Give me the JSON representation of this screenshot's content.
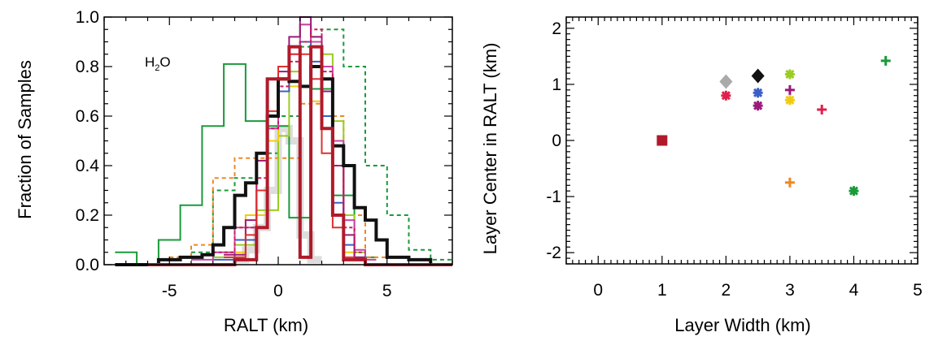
{
  "chart_data": [
    {
      "type": "line",
      "subtype": "histogram",
      "xlabel": "RALT (km)",
      "ylabel": "Fraction of Samples",
      "xlim": [
        -8,
        8
      ],
      "ylim": [
        0,
        1
      ],
      "xticks": [
        -5,
        0,
        5
      ],
      "yticks": [
        0.0,
        0.2,
        0.4,
        0.6,
        0.8,
        1.0
      ],
      "ytick_labels": [
        "0.0",
        "0.2",
        "0.4",
        "0.6",
        "0.8",
        "1.0"
      ],
      "annotation": {
        "main": "H",
        "sub": "2",
        "tail": "O"
      },
      "grid": false,
      "series": [
        {
          "color": "#dddddd",
          "width": 9,
          "dash": "",
          "x": [
            -2.0,
            -1.5,
            -1.0,
            -0.5,
            0.0,
            0.5,
            1.0,
            1.5
          ],
          "y": [
            0.02,
            0.06,
            0.15,
            0.3,
            0.55,
            0.5,
            0.12,
            0.02
          ]
        },
        {
          "color": "#1a9a3a",
          "width": 2,
          "dash": "",
          "x": [
            -7.5,
            -6.5,
            -5.5,
            -4.5,
            -3.5,
            -2.5,
            -1.5,
            -0.5,
            0.5,
            1.5,
            2.5,
            3.5
          ],
          "y": [
            0.05,
            0.0,
            0.1,
            0.24,
            0.56,
            0.81,
            0.58,
            0.56,
            0.19,
            0.71,
            0.28,
            0.03
          ]
        },
        {
          "color": "#1a9a3a",
          "width": 2,
          "dash": "5,4",
          "x": [
            -4.0,
            -3.0,
            -2.0,
            -1.0,
            0.0,
            1.0,
            2.0,
            3.0,
            4.0,
            5.0,
            6.0,
            7.0
          ],
          "y": [
            0.05,
            0.3,
            0.35,
            0.45,
            0.6,
            0.88,
            0.95,
            0.8,
            0.4,
            0.2,
            0.06,
            0.02
          ]
        },
        {
          "color": "#ee8822",
          "width": 2,
          "dash": "5,4",
          "x": [
            -5.0,
            -4.0,
            -3.0,
            -2.0,
            -1.0,
            0.0,
            1.0,
            2.0,
            3.0,
            4.0
          ],
          "y": [
            0.03,
            0.08,
            0.35,
            0.43,
            0.43,
            0.43,
            0.65,
            0.6,
            0.2,
            0.03
          ]
        },
        {
          "color": "#9acc22",
          "width": 2,
          "dash": "",
          "x": [
            -3.0,
            -2.0,
            -1.0,
            0.0,
            0.5,
            1.0,
            1.5,
            2.0,
            2.5,
            3.0,
            3.5,
            4.0
          ],
          "y": [
            0.03,
            0.08,
            0.22,
            0.52,
            0.78,
            0.97,
            0.92,
            0.85,
            0.58,
            0.2,
            0.05,
            0.02
          ]
        },
        {
          "color": "#f0cc10",
          "width": 2,
          "dash": "",
          "x": [
            -2.5,
            -1.5,
            -0.5,
            0.0,
            0.5,
            1.0,
            1.5,
            2.0,
            2.5,
            3.0
          ],
          "y": [
            0.05,
            0.2,
            0.5,
            0.7,
            0.72,
            0.72,
            0.66,
            0.7,
            0.4,
            0.05
          ]
        },
        {
          "color": "#3a5fc8",
          "width": 2,
          "dash": "",
          "x": [
            -3.0,
            -2.0,
            -1.0,
            -0.5,
            0.0,
            0.5,
            1.0,
            1.5,
            2.0,
            2.5,
            3.0,
            3.5
          ],
          "y": [
            0.02,
            0.1,
            0.3,
            0.6,
            0.7,
            0.88,
            0.9,
            0.82,
            0.6,
            0.25,
            0.08,
            0.02
          ]
        },
        {
          "color": "#cc44aa",
          "width": 2,
          "dash": "",
          "x": [
            -4.0,
            -3.0,
            -2.0,
            -1.0,
            -0.5,
            0.0,
            0.5,
            1.0,
            1.5,
            2.0,
            2.5,
            3.0,
            3.5,
            4.0
          ],
          "y": [
            0.02,
            0.05,
            0.15,
            0.3,
            0.55,
            0.75,
            0.85,
            0.97,
            0.9,
            0.8,
            0.5,
            0.18,
            0.06,
            0.02
          ]
        },
        {
          "color": "#9a1a7a",
          "width": 2,
          "dash": "",
          "x": [
            -2.5,
            -1.5,
            -1.0,
            -0.5,
            0.0,
            0.5,
            1.0,
            1.5,
            2.0,
            2.5,
            3.0,
            3.5
          ],
          "y": [
            0.04,
            0.18,
            0.42,
            0.6,
            0.78,
            0.92,
            1.0,
            0.92,
            0.7,
            0.4,
            0.12,
            0.03
          ]
        },
        {
          "color": "#cc1a5a",
          "width": 2,
          "dash": "4,3",
          "x": [
            -3.0,
            -2.0,
            -1.0,
            -0.5,
            0.0,
            0.5,
            1.0,
            1.5,
            2.0,
            2.5,
            3.0,
            3.5
          ],
          "y": [
            0.05,
            0.15,
            0.35,
            0.55,
            0.72,
            0.82,
            0.9,
            0.95,
            0.78,
            0.4,
            0.15,
            0.05
          ]
        },
        {
          "color": "#e03030",
          "width": 2,
          "dash": "",
          "x": [
            -2.5,
            -1.5,
            -1.0,
            -0.5,
            0.0,
            0.5,
            1.0,
            1.5,
            2.0,
            2.5,
            3.0
          ],
          "y": [
            0.03,
            0.12,
            0.3,
            0.62,
            0.8,
            0.85,
            0.85,
            0.75,
            0.45,
            0.15,
            0.03
          ]
        },
        {
          "color": "#111111",
          "width": 4,
          "dash": "",
          "x": [
            -7.5,
            -6.5,
            -5.5,
            -4.5,
            -3.5,
            -3.0,
            -2.5,
            -2.0,
            -1.5,
            -1.0,
            -0.5,
            0.0,
            0.5,
            1.0,
            1.5,
            2.0,
            2.5,
            3.0,
            3.5,
            4.0,
            4.5,
            5.0,
            6.0,
            7.0
          ],
          "y": [
            0.0,
            0.0,
            0.02,
            0.03,
            0.04,
            0.08,
            0.15,
            0.28,
            0.33,
            0.45,
            0.6,
            0.75,
            0.74,
            0.72,
            0.8,
            0.75,
            0.48,
            0.4,
            0.23,
            0.18,
            0.1,
            0.03,
            0.02,
            0.0
          ]
        },
        {
          "color": "#b01a2a",
          "width": 4,
          "dash": "",
          "x": [
            -6.0,
            -4.0,
            -2.0,
            -1.0,
            -0.5,
            0.0,
            0.5,
            1.0,
            1.5,
            2.0,
            2.5,
            3.0,
            4.0,
            6.0
          ],
          "y": [
            0.0,
            0.0,
            0.02,
            0.15,
            0.75,
            0.75,
            0.88,
            0.03,
            0.88,
            0.55,
            0.2,
            0.02,
            0.0,
            0.0
          ]
        }
      ]
    },
    {
      "type": "scatter",
      "xlabel": "Layer Width (km)",
      "ylabel": "Layer Center in RALT (km)",
      "xlim": [
        -0.5,
        5
      ],
      "ylim": [
        -2.2,
        2.2
      ],
      "xticks": [
        0,
        1,
        2,
        3,
        4,
        5
      ],
      "yticks": [
        -2,
        -1,
        0,
        1,
        2
      ],
      "grid": false,
      "points": [
        {
          "x": 1.0,
          "y": 0.0,
          "color": "#b01a2a",
          "marker": "square"
        },
        {
          "x": 2.0,
          "y": 1.05,
          "color": "#aaaaaa",
          "marker": "diamond"
        },
        {
          "x": 2.0,
          "y": 0.8,
          "color": "#e0204a",
          "marker": "asterisk"
        },
        {
          "x": 2.5,
          "y": 1.15,
          "color": "#111111",
          "marker": "diamond"
        },
        {
          "x": 2.5,
          "y": 0.85,
          "color": "#3a5fc8",
          "marker": "asterisk"
        },
        {
          "x": 2.5,
          "y": 0.62,
          "color": "#9a1a7a",
          "marker": "asterisk"
        },
        {
          "x": 3.0,
          "y": 1.18,
          "color": "#9acc22",
          "marker": "asterisk"
        },
        {
          "x": 3.0,
          "y": 0.9,
          "color": "#9a1a7a",
          "marker": "plus"
        },
        {
          "x": 3.0,
          "y": 0.72,
          "color": "#f0cc10",
          "marker": "asterisk"
        },
        {
          "x": 3.0,
          "y": -0.75,
          "color": "#ee8822",
          "marker": "plus"
        },
        {
          "x": 3.5,
          "y": 0.55,
          "color": "#e0204a",
          "marker": "plus"
        },
        {
          "x": 4.0,
          "y": -0.9,
          "color": "#1a9a3a",
          "marker": "asterisk"
        },
        {
          "x": 4.5,
          "y": 1.42,
          "color": "#1a9a3a",
          "marker": "plus"
        }
      ]
    }
  ]
}
